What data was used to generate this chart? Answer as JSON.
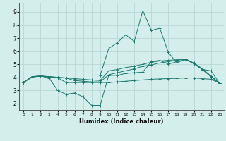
{
  "xlabel": "Humidex (Indice chaleur)",
  "bg_color": "#d4eeec",
  "grid_color": "#b8d8d5",
  "line_color": "#1a7a6e",
  "xlim": [
    -0.5,
    23.5
  ],
  "ylim": [
    1.5,
    9.7
  ],
  "xticks": [
    0,
    1,
    2,
    3,
    4,
    5,
    6,
    7,
    8,
    9,
    10,
    11,
    12,
    13,
    14,
    15,
    16,
    17,
    18,
    19,
    20,
    21,
    22,
    23
  ],
  "yticks": [
    2,
    3,
    4,
    5,
    6,
    7,
    8,
    9
  ],
  "curve1_x": [
    0,
    1,
    2,
    3,
    4,
    5,
    6,
    7,
    8,
    9,
    10,
    11,
    12,
    13,
    14,
    15,
    16,
    17,
    18,
    19,
    20,
    21,
    22,
    23
  ],
  "curve1_y": [
    3.6,
    4.05,
    4.1,
    3.95,
    3.0,
    2.7,
    2.8,
    2.5,
    1.85,
    1.85,
    4.15,
    4.15,
    4.3,
    4.35,
    4.4,
    5.2,
    5.3,
    5.0,
    5.2,
    5.35,
    5.05,
    4.6,
    4.05,
    3.55
  ],
  "curve2_x": [
    0,
    1,
    2,
    3,
    4,
    5,
    6,
    7,
    8,
    9,
    10,
    11,
    12,
    13,
    14,
    15,
    16,
    17,
    18,
    19,
    20,
    21,
    22,
    23
  ],
  "curve2_y": [
    3.6,
    4.05,
    4.1,
    4.05,
    4.0,
    3.95,
    3.9,
    3.85,
    3.8,
    3.75,
    4.5,
    4.6,
    4.75,
    4.85,
    5.0,
    5.15,
    5.25,
    5.3,
    5.35,
    5.4,
    5.1,
    4.65,
    4.1,
    3.55
  ],
  "curve3_x": [
    0,
    1,
    2,
    3,
    4,
    5,
    6,
    7,
    8,
    9,
    10,
    11,
    12,
    13,
    14,
    15,
    16,
    17,
    18,
    19,
    20,
    21,
    22,
    23
  ],
  "curve3_y": [
    3.6,
    4.05,
    4.1,
    4.05,
    4.0,
    3.95,
    3.75,
    3.7,
    3.65,
    3.65,
    4.2,
    4.35,
    4.5,
    4.65,
    4.85,
    4.95,
    5.1,
    5.2,
    5.3,
    5.4,
    5.05,
    4.6,
    4.05,
    3.55
  ],
  "curve4_x": [
    0,
    1,
    2,
    3,
    4,
    5,
    6,
    7,
    8,
    9,
    10,
    11,
    12,
    13,
    14,
    15,
    16,
    17,
    18,
    19,
    20,
    21,
    22,
    23
  ],
  "curve4_y": [
    3.6,
    4.0,
    4.1,
    4.05,
    3.98,
    3.6,
    3.6,
    3.6,
    3.6,
    3.6,
    3.6,
    3.65,
    3.7,
    3.75,
    3.8,
    3.85,
    3.88,
    3.9,
    3.92,
    3.95,
    3.95,
    3.9,
    3.85,
    3.55
  ],
  "curve5_x": [
    9,
    10,
    11,
    12,
    13,
    14,
    15,
    16,
    17,
    18,
    19,
    20,
    21,
    22,
    23
  ],
  "curve5_y": [
    4.15,
    6.2,
    6.65,
    7.25,
    6.75,
    9.1,
    7.6,
    7.75,
    5.9,
    5.1,
    5.4,
    5.05,
    4.6,
    4.5,
    3.55
  ]
}
